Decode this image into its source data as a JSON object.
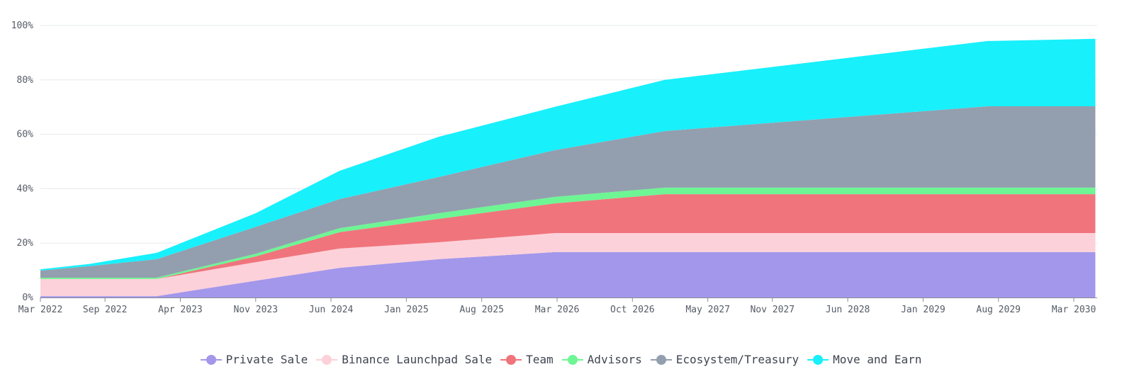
{
  "chart_data": {
    "type": "area",
    "stacked": true,
    "title": "",
    "xlabel": "",
    "ylabel": "",
    "ylim": [
      0,
      100
    ],
    "y_ticks": [
      "0%",
      "20%",
      "40%",
      "60%",
      "80%",
      "100%"
    ],
    "y_tick_values": [
      0,
      20,
      40,
      60,
      80,
      100
    ],
    "x_ticks": [
      "Mar 2022",
      "Sep 2022",
      "Apr 2023",
      "Nov 2023",
      "Jun 2024",
      "Jan 2025",
      "Aug 2025",
      "Mar 2026",
      "Oct 2026",
      "May 2027",
      "Nov 2027",
      "Jun 2028",
      "Jan 2029",
      "Aug 2029",
      "Mar 2030"
    ],
    "x_tick_months": [
      0,
      6,
      13,
      20,
      27,
      34,
      41,
      48,
      55,
      62,
      68,
      75,
      82,
      89,
      96
    ],
    "x_range_months": [
      0,
      98
    ],
    "x_start": "Mar 2022",
    "grid": true,
    "legend_position": "bottom-center",
    "x": [
      "Mar 2022",
      "Jul 2022",
      "Dec 2022",
      "Oct 2023",
      "Jun 2024",
      "Apr 2025",
      "Feb 2026",
      "Sep 2026",
      "Jul 2029",
      "May 2030"
    ],
    "x_months": [
      0,
      4.5,
      10.8,
      20,
      27.8,
      37,
      47.8,
      58,
      88,
      98
    ],
    "series": [
      {
        "name": "Private Sale",
        "color": "#a397eb",
        "values": [
          0.5,
          0.5,
          0.5,
          6.2,
          10.9,
          14.1,
          16.7,
          16.7,
          16.7,
          16.7
        ]
      },
      {
        "name": "Binance Launchpad Sale",
        "color": "#fdd1da",
        "values": [
          6.3,
          6.3,
          6.3,
          6.8,
          7.1,
          6.2,
          7.0,
          7.0,
          7.0,
          7.0
        ]
      },
      {
        "name": "Team",
        "color": "#f0747c",
        "values": [
          0,
          0,
          0,
          2.1,
          6.0,
          8.6,
          10.9,
          14.3,
          14.3,
          14.3
        ]
      },
      {
        "name": "Advisors",
        "color": "#6ef594",
        "values": [
          0.5,
          0.5,
          0.5,
          1.0,
          1.5,
          2.1,
          2.4,
          2.4,
          2.4,
          2.4
        ]
      },
      {
        "name": "Ecosystem/Treasury",
        "color": "#939fae",
        "values": [
          2.6,
          4.2,
          6.8,
          9.9,
          10.7,
          13.3,
          17.2,
          20.8,
          29.9,
          29.9
        ]
      },
      {
        "name": "Move and Earn",
        "color": "#18f0fc",
        "values": [
          0.5,
          0.8,
          2.3,
          5.0,
          10.4,
          14.8,
          15.9,
          18.8,
          24.0,
          24.8
        ]
      }
    ]
  },
  "legend": {
    "items": [
      {
        "label": "Private Sale",
        "color": "#a397eb"
      },
      {
        "label": "Binance Launchpad Sale",
        "color": "#fdd1da"
      },
      {
        "label": "Team",
        "color": "#f0747c"
      },
      {
        "label": "Advisors",
        "color": "#6ef594"
      },
      {
        "label": "Ecosystem/Treasury",
        "color": "#939fae"
      },
      {
        "label": "Move and Earn",
        "color": "#18f0fc"
      }
    ]
  }
}
